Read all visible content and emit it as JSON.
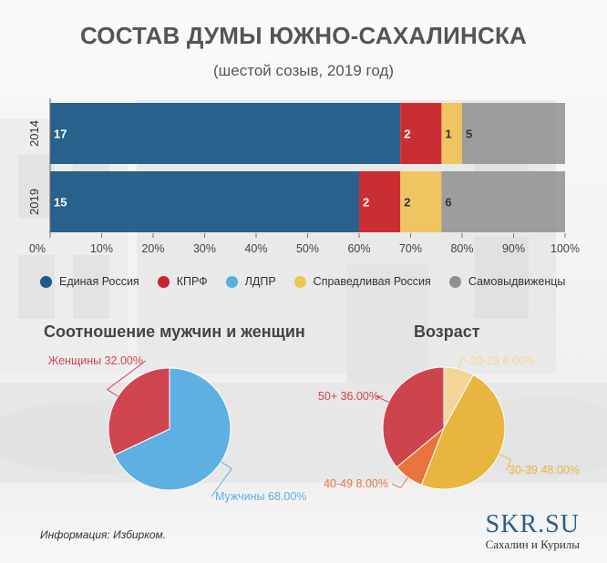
{
  "title": "СОСТАВ ДУМЫ ЮЖНО-САХАЛИНСКА",
  "subtitle": "(шестой созыв, 2019 год)",
  "colors": {
    "united_russia": "#1e5a87",
    "kprf": "#c9232b",
    "ldpr": "#5aaee0",
    "just_russia": "#f0c25a",
    "self": "#8f8f8f",
    "women": "#d0454f",
    "men": "#5fb0e2",
    "age_20_29": "#f3d59a",
    "age_30_39": "#e8b63e",
    "age_40_49": "#e8743b",
    "age_50_plus": "#cf444c"
  },
  "chart_data": [
    {
      "type": "bar",
      "orientation": "horizontal",
      "stacked": "100%",
      "categories": [
        "2014",
        "2019"
      ],
      "series": [
        {
          "name": "Единая Россия",
          "values": [
            17,
            15
          ]
        },
        {
          "name": "КПРФ",
          "values": [
            2,
            2
          ]
        },
        {
          "name": "ЛДПР",
          "values": [
            0,
            0
          ]
        },
        {
          "name": "Справедливая Россия",
          "values": [
            1,
            2
          ]
        },
        {
          "name": "Самовыдвиженцы",
          "values": [
            5,
            6
          ]
        }
      ],
      "bar_labels": [
        [
          "17",
          "2",
          "1",
          "5"
        ],
        [
          "15",
          "2",
          "2",
          "6"
        ]
      ],
      "x_ticks": [
        "0%",
        "10%",
        "20%",
        "30%",
        "40%",
        "50%",
        "60%",
        "70%",
        "80%",
        "90%",
        "100%"
      ],
      "xlim": [
        0,
        100
      ],
      "legend_position": "bottom"
    },
    {
      "type": "pie",
      "title": "Соотношение мужчин и женщин",
      "slices": [
        {
          "label": "Мужчины 68.00%",
          "value": 68.0
        },
        {
          "label": "Женщины 32.00%",
          "value": 32.0
        }
      ]
    },
    {
      "type": "pie",
      "title": "Возраст",
      "slices": [
        {
          "label": "20-29 8.00%",
          "value": 8.0
        },
        {
          "label": "30-39 48.00%",
          "value": 48.0
        },
        {
          "label": "40-49 8.00%",
          "value": 8.0
        },
        {
          "label": "50+ 36.00%",
          "value": 36.0
        }
      ]
    }
  ],
  "source": "Информация: Избирком.",
  "brand": {
    "logo": "SKR.SU",
    "tagline": "Сахалин и Курилы"
  }
}
